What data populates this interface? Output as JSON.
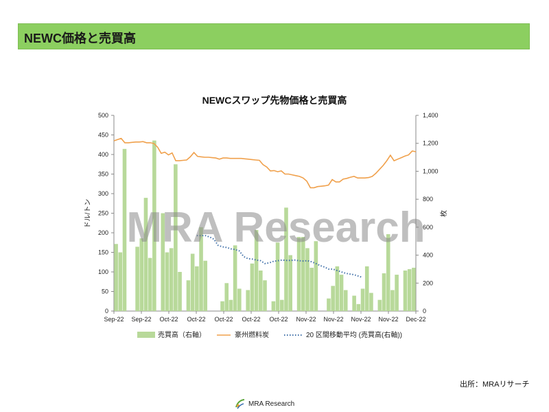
{
  "header": {
    "title": "NEWC価格と売買高"
  },
  "watermark": "MRA Research",
  "source": "出所：MRAリサーチ",
  "footer": {
    "logo_text": "MRA Research"
  },
  "colors": {
    "header_bg": "#8ccf60",
    "bar": "#b8d99a",
    "price_line": "#f0a04b",
    "ma_line": "#3f6fa8",
    "watermark": "#8a8a8a"
  },
  "chart_data": {
    "type": "bar",
    "title": "NEWCスワップ先物価格と売買高",
    "ylabel_left": "ドル/トン",
    "ylabel_right": "枚",
    "ylim_left": [
      0,
      500
    ],
    "yticks_left": [
      "0",
      "50",
      "100",
      "150",
      "200",
      "250",
      "300",
      "350",
      "400",
      "450",
      "500"
    ],
    "ylim_right": [
      0,
      1400
    ],
    "yticks_right": [
      "0",
      "200",
      "400",
      "600",
      "800",
      "1,000",
      "1,200",
      "1,400"
    ],
    "x_tick_labels": [
      "Sep-22",
      "Sep-22",
      "Oct-22",
      "Oct-22",
      "Oct-22",
      "Oct-22",
      "Oct-22",
      "Nov-22",
      "Nov-22",
      "Nov-22",
      "Nov-22",
      "Dec-22"
    ],
    "grid": false,
    "legend_position": "bottom",
    "series": [
      {
        "name": "売買高（右軸）",
        "type": "bar",
        "axis": "right",
        "values": [
          480,
          420,
          1160,
          0,
          0,
          460,
          520,
          810,
          380,
          1220,
          0,
          700,
          420,
          450,
          1050,
          280,
          0,
          220,
          410,
          320,
          600,
          360,
          0,
          0,
          0,
          70,
          200,
          80,
          470,
          160,
          0,
          150,
          340,
          580,
          290,
          220,
          0,
          70,
          490,
          80,
          740,
          400,
          0,
          530,
          530,
          450,
          310,
          500,
          0,
          0,
          90,
          180,
          320,
          260,
          150,
          0,
          110,
          50,
          160,
          320,
          130,
          0,
          80,
          270,
          550,
          150,
          260,
          0,
          290,
          300,
          310
        ]
      },
      {
        "name": "豪州燃料炭",
        "type": "line",
        "axis": "left",
        "values": [
          435,
          438,
          441,
          430,
          430,
          431,
          432,
          432,
          433,
          430,
          430,
          428,
          419,
          403,
          406,
          399,
          404,
          384,
          384,
          385,
          386,
          394,
          405,
          395,
          394,
          393,
          393,
          392,
          391,
          388,
          391,
          391,
          390,
          390,
          390,
          390,
          389,
          388,
          387,
          386,
          385,
          374,
          368,
          358,
          359,
          356,
          358,
          350,
          350,
          348,
          346,
          344,
          340,
          332,
          315,
          315,
          318,
          319,
          320,
          322,
          336,
          330,
          330,
          337,
          339,
          342,
          344,
          340,
          340,
          340,
          341,
          344,
          352,
          362,
          372,
          384,
          398,
          384,
          388,
          392,
          396,
          399,
          409,
          407
        ]
      },
      {
        "name": "20 区間移動平均 (売買高(右軸))",
        "type": "line",
        "axis": "right",
        "start_index": 19,
        "values": [
          540,
          540,
          540,
          530,
          515,
          470,
          460,
          455,
          445,
          440,
          430,
          390,
          375,
          372,
          365,
          360,
          340,
          345,
          355,
          360,
          365,
          362,
          362,
          365,
          360,
          358,
          360,
          352,
          340,
          325,
          315,
          300,
          300,
          290,
          280,
          270,
          265,
          260,
          250,
          240
        ]
      }
    ]
  }
}
